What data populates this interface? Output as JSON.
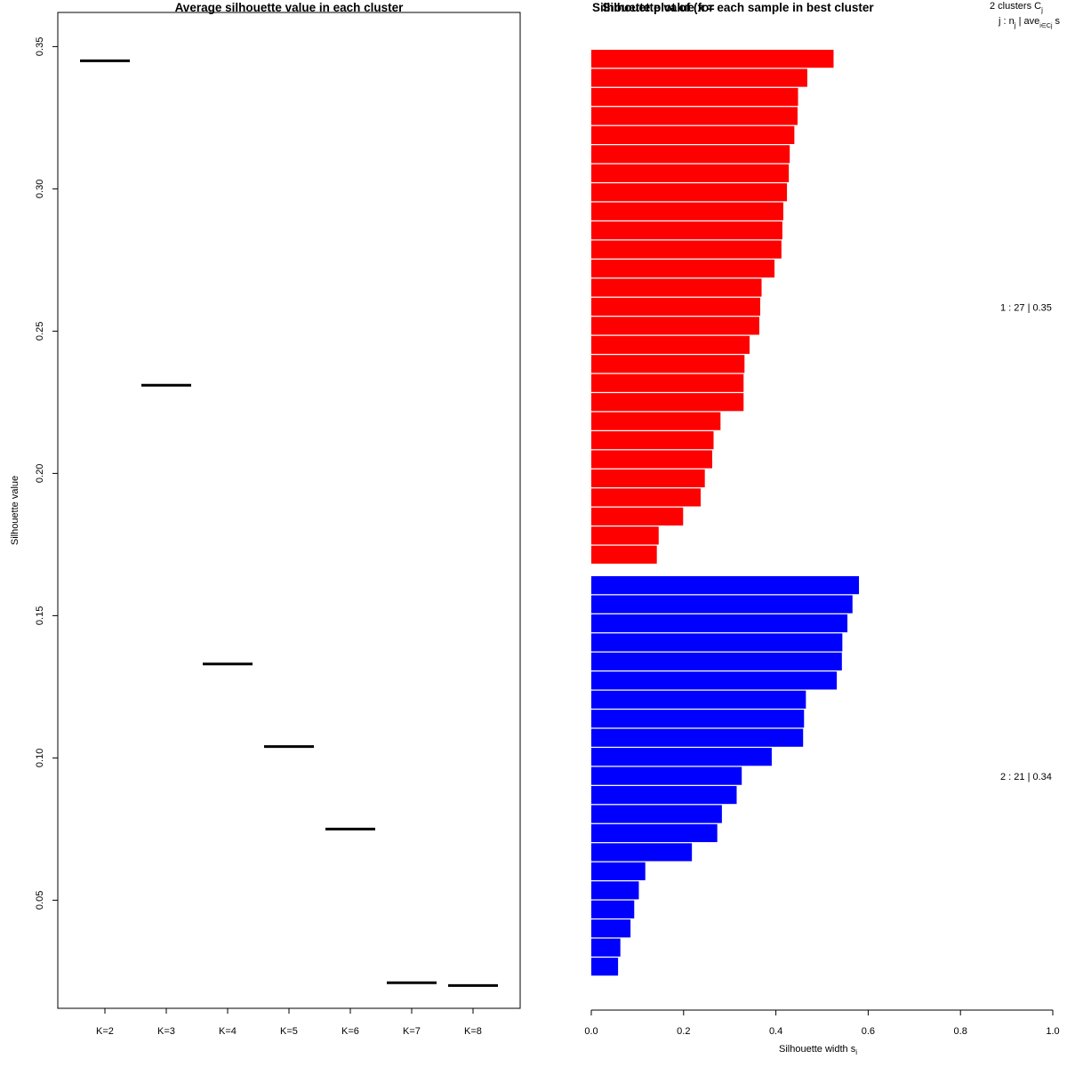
{
  "chart_data": [
    {
      "type": "line",
      "title": "Average silhouette value in each cluster",
      "xlabel": "",
      "ylabel": "Silhouette value",
      "categories": [
        "K=2",
        "K=3",
        "K=4",
        "K=5",
        "K=6",
        "K=7",
        "K=8"
      ],
      "values": [
        0.345,
        0.231,
        0.133,
        0.104,
        0.075,
        0.021,
        0.02
      ],
      "ylim": [
        0.012,
        0.362
      ],
      "yticks": [
        0.05,
        0.1,
        0.15,
        0.2,
        0.25,
        0.3,
        0.35
      ],
      "ytick_labels": [
        "0.05",
        "0.10",
        "0.15",
        "0.20",
        "0.25",
        "0.30",
        "0.35"
      ],
      "color": "#000000"
    },
    {
      "type": "bar",
      "orientation": "horizontal",
      "title": "Silhouette value for each sample in best cluster",
      "title_overlap": "Silhouette plot of (x = ",
      "xlabel": "Silhouette width s",
      "xlabel_subscript": "i",
      "xlim": [
        0,
        1
      ],
      "xticks": [
        "0.0",
        "0.2",
        "0.4",
        "0.6",
        "0.8",
        "1.0"
      ],
      "legend_header_line1": "2  clusters  C",
      "legend_header_line1_sub": "j",
      "legend_header_line2": "j :  n",
      "legend_header_line2_sub": "j",
      "legend_header_line2_mid": " | ave",
      "legend_header_line2_sub2": "i∈Cj",
      "legend_header_line2_end": "  s",
      "series": [
        {
          "name": "1 :  27  |  0.35",
          "cluster": 1,
          "size": 27,
          "avg_width": "0.35",
          "color": "#ff0000",
          "values": [
            0.525,
            0.468,
            0.448,
            0.447,
            0.44,
            0.43,
            0.428,
            0.424,
            0.416,
            0.414,
            0.412,
            0.397,
            0.369,
            0.366,
            0.364,
            0.343,
            0.332,
            0.33,
            0.33,
            0.28,
            0.265,
            0.262,
            0.246,
            0.237,
            0.199,
            0.146,
            0.142
          ]
        },
        {
          "name": "2 :  21  |  0.34",
          "cluster": 2,
          "size": 21,
          "avg_width": "0.34",
          "color": "#0000ff",
          "values": [
            0.58,
            0.566,
            0.555,
            0.544,
            0.543,
            0.532,
            0.465,
            0.461,
            0.459,
            0.391,
            0.326,
            0.315,
            0.283,
            0.273,
            0.218,
            0.117,
            0.103,
            0.093,
            0.085,
            0.063,
            0.058
          ]
        }
      ]
    }
  ]
}
